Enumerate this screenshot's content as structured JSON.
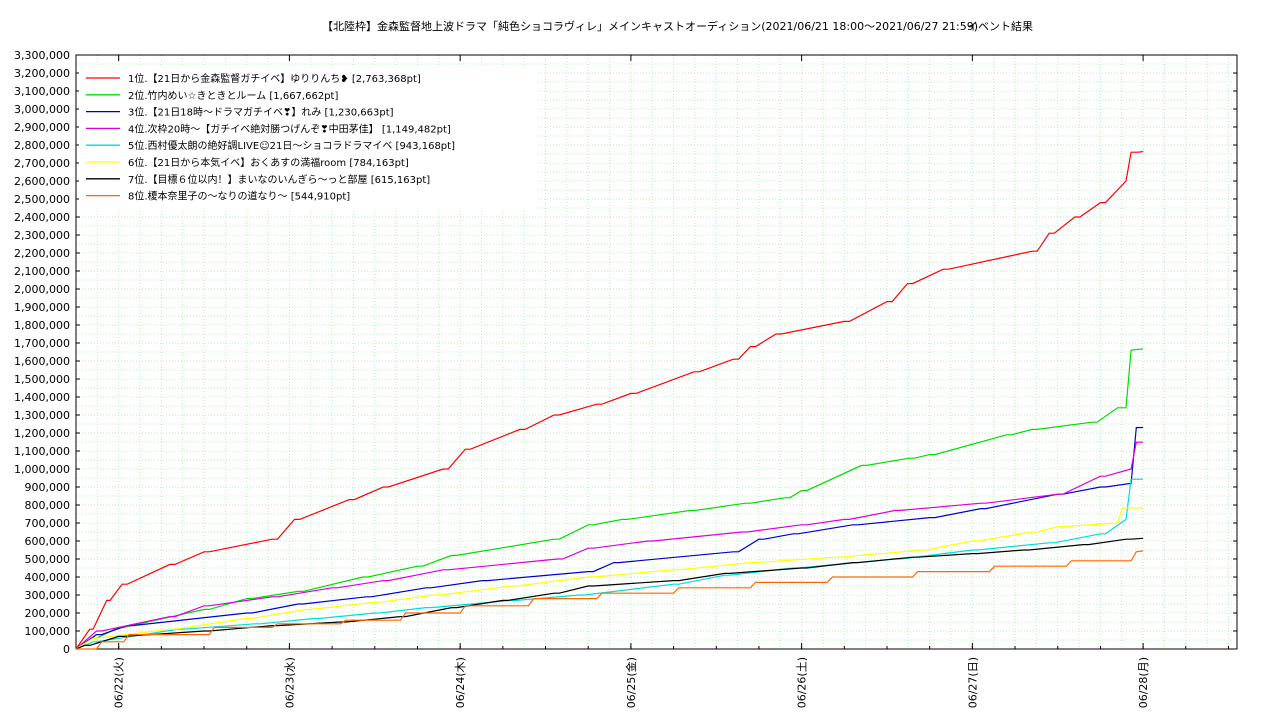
{
  "chart_data": {
    "type": "line",
    "title": "【北陸枠】金森監督地上波ドラマ「純色ショコラヴィレ」メインキャストオーディション(2021/06/21 18:00～2021/06/27 21:59)",
    "subtitle": "イベント結果",
    "xlabel": "",
    "ylabel": "",
    "ylim": [
      0,
      3300000
    ],
    "xlim": [
      0,
      6.8
    ],
    "y_ticks": [
      "0",
      "100,000",
      "200,000",
      "300,000",
      "400,000",
      "500,000",
      "600,000",
      "700,000",
      "800,000",
      "900,000",
      "1,000,000",
      "1,100,000",
      "1,200,000",
      "1,300,000",
      "1,400,000",
      "1,500,000",
      "1,600,000",
      "1,700,000",
      "1,800,000",
      "1,900,000",
      "2,000,000",
      "2,100,000",
      "2,200,000",
      "2,300,000",
      "2,400,000",
      "2,500,000",
      "2,600,000",
      "2,700,000",
      "2,800,000",
      "2,900,000",
      "3,000,000",
      "3,100,000",
      "3,200,000",
      "3,300,000"
    ],
    "x_ticks": [
      {
        "label": "06/22(火)",
        "x": 0.25
      },
      {
        "label": "06/23(水)",
        "x": 1.25
      },
      {
        "label": "06/24(木)",
        "x": 2.25
      },
      {
        "label": "06/25(金)",
        "x": 3.25
      },
      {
        "label": "06/26(土)",
        "x": 4.25
      },
      {
        "label": "06/27(日)",
        "x": 5.25
      },
      {
        "label": "06/28(月)",
        "x": 6.25
      }
    ],
    "grid": true,
    "legend_position": "top-left",
    "series": [
      {
        "name": "1位.【21日から金森監督ガチイベ】ゆりりんち❥ [2,763,368pt]",
        "color": "#ff0000",
        "x": [
          0,
          0.08,
          0.1,
          0.18,
          0.2,
          0.27,
          0.3,
          0.55,
          0.58,
          0.75,
          0.78,
          1.15,
          1.18,
          1.28,
          1.31,
          1.6,
          1.63,
          1.8,
          1.83,
          2.15,
          2.18,
          2.28,
          2.31,
          2.6,
          2.63,
          2.8,
          2.83,
          3.05,
          3.08,
          3.25,
          3.28,
          3.62,
          3.65,
          3.85,
          3.88,
          3.95,
          3.98,
          4.1,
          4.13,
          4.5,
          4.53,
          4.75,
          4.78,
          4.87,
          4.9,
          5.08,
          5.11,
          5.6,
          5.63,
          5.7,
          5.73,
          5.85,
          5.88,
          6.0,
          6.03,
          6.15,
          6.18,
          6.22,
          6.25
        ],
        "y": [
          0,
          110000,
          110000,
          270000,
          270000,
          360000,
          360000,
          470000,
          470000,
          540000,
          540000,
          610000,
          610000,
          720000,
          720000,
          830000,
          830000,
          900000,
          900000,
          1000000,
          1000000,
          1110000,
          1110000,
          1220000,
          1220000,
          1300000,
          1300000,
          1360000,
          1360000,
          1420000,
          1420000,
          1540000,
          1540000,
          1610000,
          1610000,
          1680000,
          1680000,
          1750000,
          1750000,
          1820000,
          1820000,
          1930000,
          1930000,
          2030000,
          2030000,
          2110000,
          2110000,
          2210000,
          2210000,
          2310000,
          2310000,
          2400000,
          2400000,
          2480000,
          2480000,
          2600000,
          2760000,
          2760000,
          2763368
        ]
      },
      {
        "name": "2位.竹内めい☆きときとルーム [1,667,662pt]",
        "color": "#00dd00",
        "x": [
          0,
          0.1,
          0.12,
          0.25,
          0.28,
          0.75,
          0.78,
          1.0,
          1.03,
          1.3,
          1.33,
          1.68,
          1.71,
          2.0,
          2.03,
          2.2,
          2.23,
          2.8,
          2.83,
          3.0,
          3.03,
          3.2,
          3.23,
          3.6,
          3.63,
          3.92,
          3.95,
          4.15,
          4.18,
          4.25,
          4.28,
          4.6,
          4.63,
          4.88,
          4.91,
          5.0,
          5.03,
          5.45,
          5.48,
          5.6,
          5.63,
          5.95,
          5.98,
          6.1,
          6.15,
          6.18,
          6.25
        ],
        "y": [
          0,
          60000,
          60000,
          120000,
          120000,
          220000,
          220000,
          280000,
          280000,
          320000,
          320000,
          400000,
          400000,
          460000,
          460000,
          520000,
          520000,
          610000,
          610000,
          690000,
          690000,
          720000,
          720000,
          770000,
          770000,
          810000,
          810000,
          840000,
          840000,
          880000,
          880000,
          1020000,
          1020000,
          1060000,
          1060000,
          1080000,
          1080000,
          1190000,
          1190000,
          1220000,
          1220000,
          1260000,
          1260000,
          1340000,
          1340000,
          1660000,
          1667662
        ]
      },
      {
        "name": "3位.【21日18時〜ドラマガチイベ❣】れみ [1,230,663pt]",
        "color": "#0000cc",
        "x": [
          0,
          0.12,
          0.15,
          0.3,
          0.33,
          1.0,
          1.03,
          1.3,
          1.33,
          1.7,
          1.73,
          2.05,
          2.08,
          2.38,
          2.41,
          3.0,
          3.03,
          3.15,
          3.18,
          3.85,
          3.88,
          4.0,
          4.03,
          4.2,
          4.23,
          4.55,
          4.58,
          5.0,
          5.03,
          5.3,
          5.33,
          5.75,
          5.78,
          6.0,
          6.03,
          6.18,
          6.21,
          6.25
        ],
        "y": [
          0,
          80000,
          80000,
          130000,
          130000,
          200000,
          200000,
          250000,
          250000,
          290000,
          290000,
          340000,
          340000,
          380000,
          380000,
          430000,
          430000,
          480000,
          480000,
          540000,
          540000,
          610000,
          610000,
          640000,
          640000,
          690000,
          690000,
          730000,
          730000,
          780000,
          780000,
          860000,
          860000,
          900000,
          900000,
          920000,
          1230000,
          1230663
        ]
      },
      {
        "name": "4位.次枠20時〜【ガチイベ絶対勝つげんぞ❣中田茅佳】 [1,149,482pt]",
        "color": "#dd00dd",
        "x": [
          0,
          0.12,
          0.15,
          0.55,
          0.58,
          0.75,
          0.78,
          1.15,
          1.18,
          1.5,
          1.53,
          1.8,
          1.83,
          2.15,
          2.18,
          2.82,
          2.85,
          3.0,
          3.03,
          3.35,
          3.38,
          3.9,
          3.93,
          4.25,
          4.28,
          4.5,
          4.53,
          4.8,
          4.83,
          5.3,
          5.33,
          5.75,
          5.78,
          6.0,
          6.03,
          6.18,
          6.21,
          6.25
        ],
        "y": [
          0,
          100000,
          100000,
          180000,
          180000,
          240000,
          240000,
          290000,
          290000,
          340000,
          340000,
          380000,
          380000,
          440000,
          440000,
          500000,
          500000,
          560000,
          560000,
          600000,
          600000,
          650000,
          650000,
          690000,
          690000,
          720000,
          720000,
          770000,
          770000,
          810000,
          810000,
          860000,
          860000,
          960000,
          960000,
          1000000,
          1149000,
          1149482
        ]
      },
      {
        "name": "5位.西村優太朗の絶好調LIVE☺21日〜ショコラドラマイベ [943,168pt]",
        "color": "#00dddd",
        "x": [
          0,
          0.1,
          0.12,
          0.6,
          0.63,
          1.05,
          1.08,
          1.4,
          1.43,
          1.75,
          1.78,
          2.05,
          2.08,
          2.55,
          2.58,
          2.95,
          2.98,
          3.5,
          3.53,
          3.8,
          3.83,
          4.2,
          4.23,
          4.8,
          4.83,
          5.25,
          5.28,
          5.7,
          5.73,
          6.0,
          6.03,
          6.15,
          6.18,
          6.25
        ],
        "y": [
          0,
          40000,
          40000,
          110000,
          110000,
          140000,
          140000,
          170000,
          170000,
          200000,
          200000,
          230000,
          230000,
          270000,
          270000,
          300000,
          300000,
          360000,
          360000,
          410000,
          410000,
          450000,
          450000,
          500000,
          500000,
          550000,
          550000,
          590000,
          590000,
          640000,
          640000,
          720000,
          943000,
          943168
        ]
      },
      {
        "name": "6位.【21日から本気イベ】おくあすの満福room [784,163pt]",
        "color": "#ffff00",
        "x": [
          0,
          0.1,
          0.12,
          0.55,
          0.58,
          1.0,
          1.03,
          1.35,
          1.38,
          1.75,
          1.78,
          2.1,
          2.13,
          2.55,
          2.58,
          3.0,
          3.03,
          3.5,
          3.53,
          3.95,
          3.98,
          4.45,
          4.48,
          4.7,
          4.73,
          4.95,
          4.98,
          5.25,
          5.28,
          5.6,
          5.63,
          5.75,
          5.78,
          6.1,
          6.13,
          6.25
        ],
        "y": [
          0,
          60000,
          60000,
          110000,
          110000,
          170000,
          170000,
          220000,
          220000,
          260000,
          260000,
          300000,
          300000,
          350000,
          350000,
          400000,
          400000,
          440000,
          440000,
          480000,
          480000,
          510000,
          510000,
          530000,
          530000,
          550000,
          550000,
          600000,
          600000,
          650000,
          650000,
          680000,
          680000,
          700000,
          784000,
          784163
        ]
      },
      {
        "name": "7位.【目標６位以内！】まいなのいんぎら〜っと部屋 [615,163pt]",
        "color": "#000000",
        "x": [
          0,
          0.05,
          0.08,
          0.25,
          0.28,
          0.75,
          0.78,
          1.15,
          1.18,
          1.55,
          1.58,
          1.9,
          1.93,
          2.2,
          2.23,
          2.5,
          2.53,
          2.8,
          2.83,
          3.0,
          3.03,
          3.5,
          3.53,
          3.8,
          3.83,
          4.25,
          4.28,
          4.55,
          4.58,
          4.9,
          4.93,
          5.25,
          5.28,
          5.55,
          5.58,
          5.9,
          5.93,
          6.15,
          6.18,
          6.25
        ],
        "y": [
          0,
          20000,
          20000,
          70000,
          70000,
          100000,
          100000,
          130000,
          130000,
          150000,
          150000,
          180000,
          180000,
          230000,
          230000,
          270000,
          270000,
          310000,
          310000,
          350000,
          350000,
          380000,
          380000,
          420000,
          420000,
          450000,
          450000,
          480000,
          480000,
          510000,
          510000,
          530000,
          530000,
          550000,
          550000,
          580000,
          580000,
          610000,
          610000,
          615163
        ]
      },
      {
        "name": "8位.榎本奈里子の〜なりの道なり〜 [544,910pt]",
        "color": "#ff6600",
        "x": [
          0,
          0.12,
          0.15,
          0.28,
          0.31,
          0.78,
          0.81,
          1.15,
          1.18,
          1.55,
          1.58,
          1.9,
          1.93,
          2.25,
          2.28,
          2.65,
          2.68,
          3.05,
          3.08,
          3.5,
          3.53,
          3.95,
          3.98,
          4.4,
          4.43,
          4.9,
          4.93,
          5.35,
          5.38,
          5.8,
          5.83,
          6.18,
          6.21,
          6.25
        ],
        "y": [
          0,
          0,
          40000,
          40000,
          80000,
          80000,
          120000,
          120000,
          140000,
          140000,
          160000,
          160000,
          200000,
          200000,
          240000,
          240000,
          280000,
          280000,
          310000,
          310000,
          340000,
          340000,
          370000,
          370000,
          400000,
          400000,
          430000,
          430000,
          460000,
          460000,
          490000,
          490000,
          540000,
          544910
        ]
      }
    ]
  }
}
